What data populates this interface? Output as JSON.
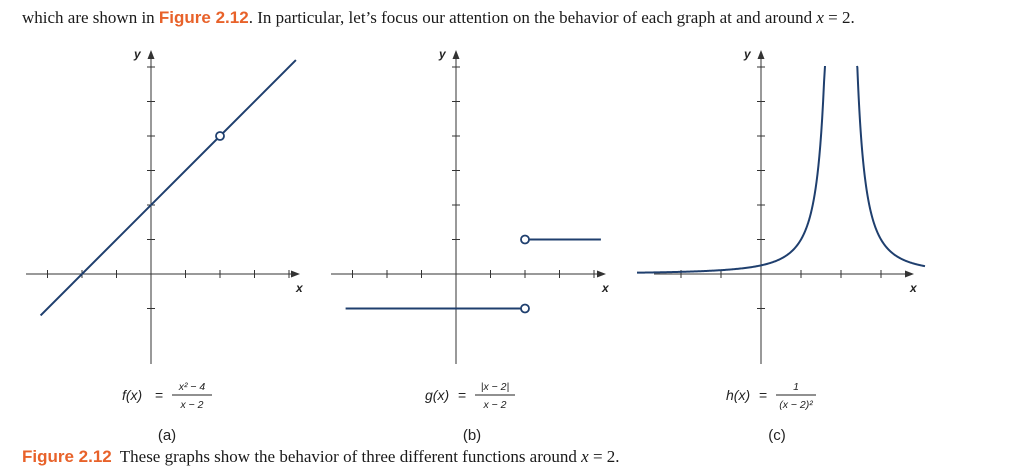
{
  "intro": {
    "before": "which are shown in ",
    "figure_ref": "Figure 2.12",
    "after": ". In particular, let’s focus our attention on the behavior of each graph at and around ",
    "math_var": "x",
    "math_rest": " = 2."
  },
  "caption": {
    "label": "Figure 2.12",
    "text": "These graphs show the behavior of three different functions around ",
    "math_var": "x",
    "math_rest": " = 2."
  },
  "colors": {
    "curve": "#1f3f6e",
    "axis": "#333333",
    "accent": "#e8622a"
  },
  "chart_data": [
    {
      "type": "line",
      "panel_label": "(a)",
      "formula": {
        "name": "f(x)",
        "numerator": "x² − 4",
        "denominator": "x − 2"
      },
      "xlabel": "x",
      "ylabel": "y",
      "xlim": [
        -3.6,
        4.5
      ],
      "ylim": [
        -2.6,
        6.3
      ],
      "grid": false,
      "series": [
        {
          "kind": "segment",
          "x": [
            -3.2,
            4.2
          ],
          "y": [
            -1.2,
            6.2
          ]
        }
      ],
      "open_points": [
        [
          2,
          4
        ]
      ],
      "closed_points": []
    },
    {
      "type": "line",
      "panel_label": "(b)",
      "formula": {
        "name": "g(x)",
        "numerator": "|x − 2|",
        "denominator": "x − 2"
      },
      "xlabel": "x",
      "ylabel": "y",
      "xlim": [
        -3.6,
        4.5
      ],
      "ylim": [
        -2.6,
        6.3
      ],
      "grid": false,
      "series": [
        {
          "kind": "segment",
          "x": [
            -3.2,
            2
          ],
          "y": [
            -1,
            -1
          ]
        },
        {
          "kind": "segment",
          "x": [
            2,
            4.2
          ],
          "y": [
            1,
            1
          ]
        }
      ],
      "open_points": [
        [
          2,
          -1
        ],
        [
          2,
          1
        ]
      ],
      "closed_points": []
    },
    {
      "type": "line",
      "panel_label": "(c)",
      "formula": {
        "name": "h(x)",
        "numerator": "1",
        "denominator": "(x − 2)²"
      },
      "xlabel": "x",
      "ylabel": "y",
      "xlim": [
        -3.6,
        4.5
      ],
      "ylim": [
        -2.6,
        6.3
      ],
      "grid": false,
      "series": [
        {
          "kind": "function",
          "expr": "1/(x-2)^2",
          "x": [
            -3.1,
            1.6
          ]
        },
        {
          "kind": "function",
          "expr": "1/(x-2)^2",
          "x": [
            2.4,
            4.1
          ]
        }
      ],
      "open_points": [],
      "closed_points": []
    }
  ]
}
